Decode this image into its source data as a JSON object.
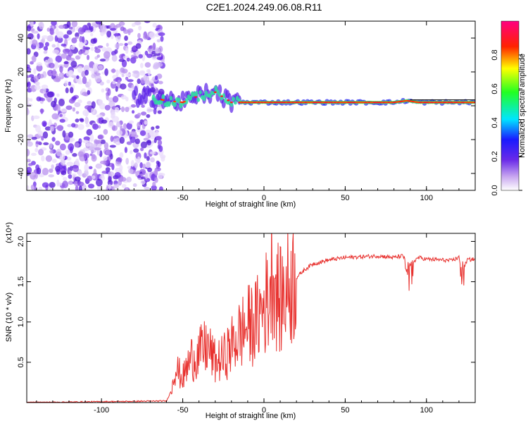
{
  "title": "C2E1.2024.249.06.08.R11",
  "colors": {
    "snr_line": "#e8322f",
    "spec_low": "#c9a8f0",
    "spec_mid": "#5a2be0",
    "spec_high": "#ff0000"
  },
  "chart_data": [
    {
      "type": "heatmap",
      "xlabel": "Height of straight line (km)",
      "ylabel": "Frequency (Hz)",
      "xlim": [
        -146,
        130
      ],
      "ylim": [
        -50,
        50
      ],
      "xticks": [
        -100,
        -50,
        0,
        50,
        100
      ],
      "yticks": [
        -40,
        -20,
        0,
        20,
        40
      ],
      "colorbar": {
        "label": "Normalized spectral amplitude",
        "range": [
          0,
          1
        ],
        "ticks": [
          "0.0",
          "0.2",
          "0.4",
          "0.6",
          "0.8"
        ],
        "tick_values": [
          0,
          0.2,
          0.4,
          0.6,
          0.8
        ]
      },
      "ridge": {
        "x": [
          -70,
          -60,
          -50,
          -40,
          -30,
          -20,
          -10,
          0,
          10,
          20,
          40,
          60,
          80,
          88,
          95,
          110,
          120,
          130
        ],
        "freq_hz": [
          5,
          3,
          2,
          6,
          8,
          2,
          2,
          2,
          2,
          2,
          2,
          2,
          2,
          3,
          2,
          2,
          2,
          2
        ]
      },
      "noise_region_x": [
        -146,
        -70
      ]
    },
    {
      "type": "line",
      "xlabel": "Height of straight line (km)",
      "ylabel": "SNR (10 * v/v)",
      "yscale_label": "(x10⁴)",
      "xlim": [
        -146,
        130
      ],
      "ylim": [
        0,
        2.1
      ],
      "xticks": [
        -100,
        -50,
        0,
        50,
        100
      ],
      "yticks": [
        0.5,
        1.0,
        1.5,
        2.0
      ],
      "ytick_labels": [
        "0.5",
        "1.0",
        "1.5",
        "2.0"
      ],
      "series": [
        {
          "x": [
            -146,
            -60,
            -57,
            -55,
            -50,
            -45,
            -40,
            -35,
            -30,
            -25,
            -20,
            -15,
            -10,
            -5,
            0,
            3,
            5,
            8,
            10,
            15,
            20,
            25,
            30,
            40,
            50,
            60,
            70,
            80,
            85,
            88,
            90,
            95,
            100,
            110,
            115,
            120,
            122,
            125,
            130
          ],
          "values": [
            0.0,
            0.02,
            0.15,
            0.45,
            0.3,
            0.55,
            0.6,
            0.7,
            0.5,
            0.55,
            0.7,
            0.85,
            0.95,
            1.0,
            1.2,
            1.3,
            1.75,
            1.35,
            1.25,
            1.45,
            1.55,
            1.65,
            1.72,
            1.77,
            1.8,
            1.81,
            1.82,
            1.8,
            1.82,
            1.76,
            1.72,
            1.8,
            1.78,
            1.77,
            1.76,
            1.8,
            1.62,
            1.77,
            1.78
          ]
        }
      ]
    }
  ]
}
